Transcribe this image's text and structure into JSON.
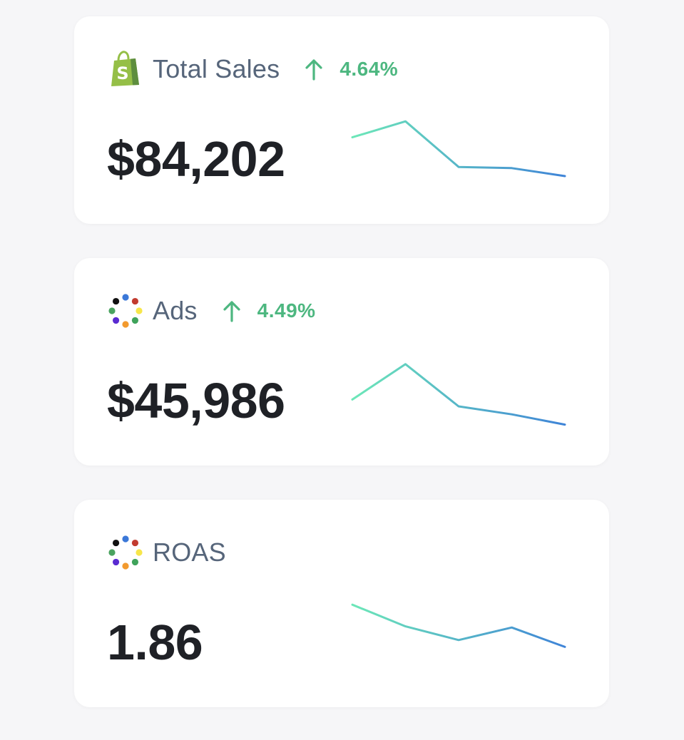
{
  "colors": {
    "background": "#f6f6f8",
    "card": "#ffffff",
    "title": "#56657a",
    "value": "#1f2126",
    "positive": "#4db780",
    "spark_start": "#6de8b8",
    "spark_end": "#3e82d8"
  },
  "cards": [
    {
      "icon": "shopify-bag-icon",
      "title": "Total Sales",
      "change": "4.64%",
      "change_direction": "up",
      "value": "$84,202",
      "trend": [
        0.69,
        0.83,
        0.43,
        0.42,
        0.35
      ]
    },
    {
      "icon": "dots-ring-icon",
      "title": "Ads",
      "change": "4.49%",
      "change_direction": "up",
      "value": "$45,986",
      "trend": [
        0.51,
        0.82,
        0.45,
        0.38,
        0.29
      ]
    },
    {
      "icon": "dots-ring-icon",
      "title": "ROAS",
      "change": "",
      "change_direction": "",
      "value": "1.86",
      "trend": [
        0.83,
        0.64,
        0.52,
        0.63,
        0.46
      ]
    }
  ]
}
